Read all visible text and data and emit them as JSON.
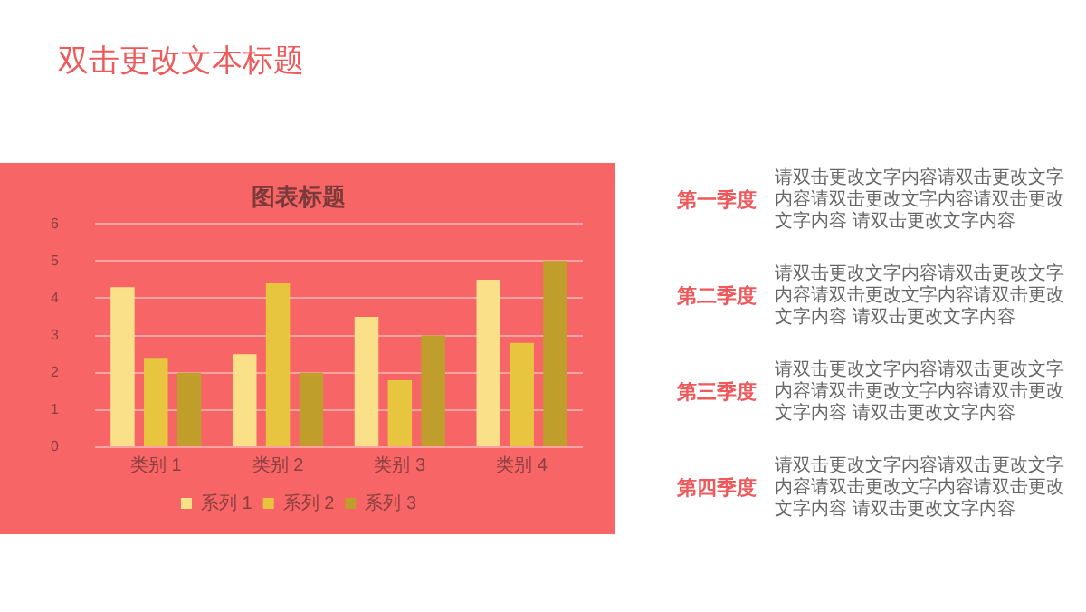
{
  "chart_data": {
    "type": "bar",
    "title": "图表标题",
    "categories": [
      "类别 1",
      "类别 2",
      "类别 3",
      "类别 4"
    ],
    "series": [
      {
        "name": "系列 1",
        "color": "#fbe08a",
        "values": [
          4.3,
          2.5,
          3.5,
          4.5
        ]
      },
      {
        "name": "系列 2",
        "color": "#e8c53f",
        "values": [
          2.4,
          4.4,
          1.8,
          2.8
        ]
      },
      {
        "name": "系列 3",
        "color": "#bf9e2c",
        "values": [
          2,
          2,
          3,
          5
        ]
      }
    ],
    "ylim": [
      0,
      6
    ],
    "yticks": [
      0,
      1,
      2,
      3,
      4,
      5,
      6
    ],
    "grid": "y",
    "legend": "bottom",
    "annotations": [
      "双击更改文本标题",
      "第一季度",
      "请双击更改文字内容请双击更改文字内容请双击更改文字内容请双击更改文字内容 请双击更改文字内容",
      "第二季度",
      "请双击更改文字内容请双击更改文字内容请双击更改文字内容请双击更改文字内容 请双击更改文字内容",
      "第三季度",
      "请双击更改文字内容请双击更改文字内容请双击更改文字内容请双击更改文字内容 请双击更改文字内容",
      "第四季度",
      "请双击更改文字内容请双击更改文字内容请双击更改文字内容请双击更改文字内容 请双击更改文字内容"
    ]
  }
}
